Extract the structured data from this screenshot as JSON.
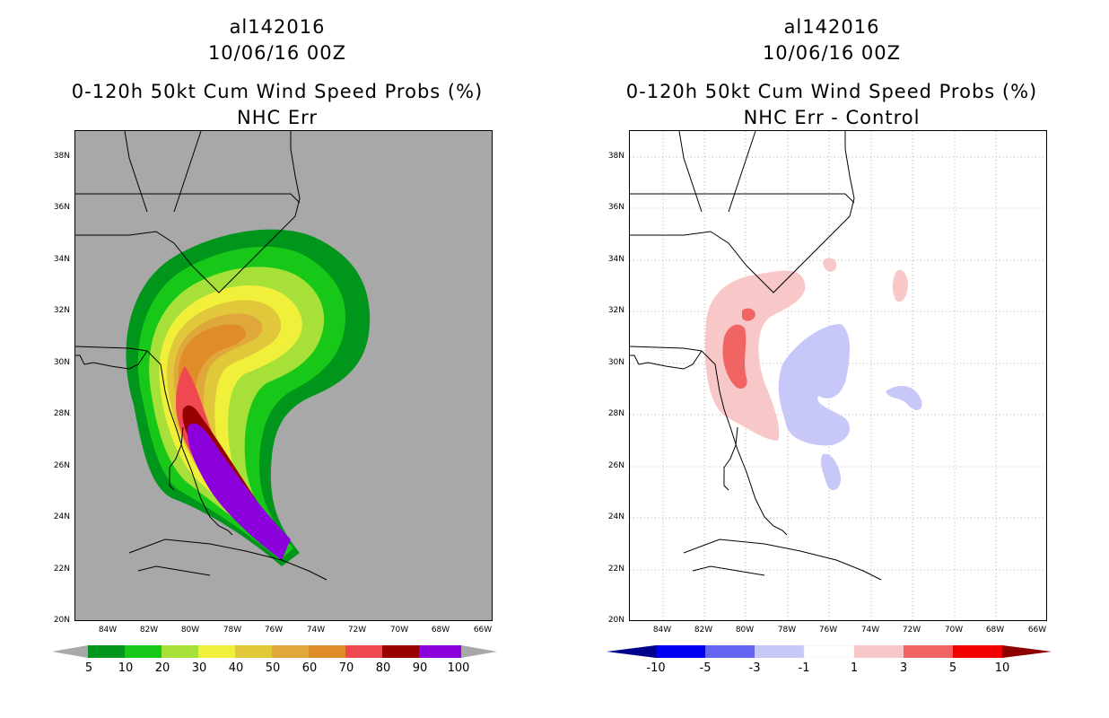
{
  "left": {
    "title_line1": "al142016",
    "title_line2": "10/06/16 00Z",
    "title_line3": "0-120h 50kt Cum Wind Speed Probs (%)",
    "title_line4": "NHC Err",
    "colorbar": {
      "labels": [
        "5",
        "10",
        "20",
        "30",
        "40",
        "50",
        "60",
        "70",
        "80",
        "90",
        "100"
      ],
      "colors": [
        "#00961c",
        "#18c818",
        "#a8e03a",
        "#f0f03a",
        "#e0c83a",
        "#e0a83a",
        "#e08c28",
        "#f04850",
        "#960000",
        "#8c00dc"
      ]
    }
  },
  "right": {
    "title_line1": "al142016",
    "title_line2": "10/06/16 00Z",
    "title_line3": "0-120h 50kt Cum Wind Speed Probs (%)",
    "title_line4": "NHC Err - Control",
    "colorbar": {
      "labels": [
        "-10",
        "-5",
        "-3",
        "-1",
        "1",
        "3",
        "5",
        "10"
      ],
      "colors": [
        "#00008c",
        "#0000f0",
        "#6464f0",
        "#c8c8f8",
        "#ffffff",
        "#f8c8c8",
        "#f06464",
        "#f00000",
        "#8c0000"
      ]
    }
  },
  "axes": {
    "lat_labels": [
      "38N",
      "36N",
      "34N",
      "32N",
      "30N",
      "28N",
      "26N",
      "24N",
      "22N",
      "20N"
    ],
    "lon_labels": [
      "84W",
      "82W",
      "80W",
      "78W",
      "76W",
      "74W",
      "72W",
      "70W",
      "68W",
      "66W"
    ]
  }
}
